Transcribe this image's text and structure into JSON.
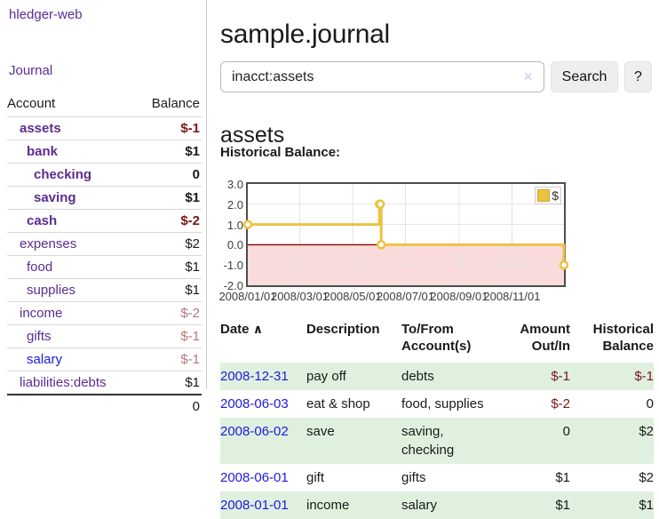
{
  "sidebar": {
    "app_title": "hledger-web",
    "journal_link": "Journal",
    "table": {
      "account_header": "Account",
      "balance_header": "Balance",
      "rows": [
        {
          "name": "assets",
          "balance": "$-1",
          "indent": 1,
          "bold": true,
          "amount_tone": "neg-strong",
          "link_tone": "purple"
        },
        {
          "name": "bank",
          "balance": "$1",
          "indent": 2,
          "bold": true,
          "amount_tone": "normal",
          "link_tone": "purple"
        },
        {
          "name": "checking",
          "balance": "0",
          "indent": 3,
          "bold": true,
          "amount_tone": "normal",
          "link_tone": "purple"
        },
        {
          "name": "saving",
          "balance": "$1",
          "indent": 3,
          "bold": true,
          "amount_tone": "normal",
          "link_tone": "purple"
        },
        {
          "name": "cash",
          "balance": "$-2",
          "indent": 2,
          "bold": true,
          "amount_tone": "neg-strong",
          "link_tone": "purple"
        },
        {
          "name": "expenses",
          "balance": "$2",
          "indent": 1,
          "bold": false,
          "amount_tone": "normal",
          "link_tone": "purple"
        },
        {
          "name": "food",
          "balance": "$1",
          "indent": 2,
          "bold": false,
          "amount_tone": "normal",
          "link_tone": "purple"
        },
        {
          "name": "supplies",
          "balance": "$1",
          "indent": 2,
          "bold": false,
          "amount_tone": "normal",
          "link_tone": "purple"
        },
        {
          "name": "income",
          "balance": "$-2",
          "indent": 1,
          "bold": false,
          "amount_tone": "neg-soft",
          "link_tone": "purple"
        },
        {
          "name": "gifts",
          "balance": "$-1",
          "indent": 2,
          "bold": false,
          "amount_tone": "neg-soft",
          "link_tone": "purple"
        },
        {
          "name": "salary",
          "balance": "$-1",
          "indent": 2,
          "bold": false,
          "amount_tone": "neg-soft",
          "link_tone": "blue"
        },
        {
          "name": "liabilities:debts",
          "balance": "$1",
          "indent": 1,
          "bold": false,
          "amount_tone": "normal",
          "link_tone": "purple"
        }
      ],
      "total": "0"
    }
  },
  "main": {
    "title": "sample.journal",
    "search": {
      "value": "inacct:assets",
      "clear_icon": "✕",
      "button_label": "Search",
      "help_label": "?"
    },
    "account_heading": "assets",
    "chart_heading": "Historical Balance:"
  },
  "chart_data": {
    "type": "line",
    "step": true,
    "title": "Historical Balance:",
    "series": [
      {
        "name": "$",
        "color": "#edc240",
        "points": [
          [
            "2008-01-01",
            1
          ],
          [
            "2008-06-01",
            2
          ],
          [
            "2008-06-02",
            2
          ],
          [
            "2008-06-03",
            0
          ],
          [
            "2008-12-31",
            -1
          ]
        ]
      }
    ],
    "ylim": [
      -2,
      3
    ],
    "yticks": [
      "3.0",
      "2.0",
      "1.0",
      "0.0",
      "-1.0",
      "-2.0"
    ],
    "xticks": [
      "2008/01/01",
      "2008/03/01",
      "2008/05/01",
      "2008/07/01",
      "2008/09/01",
      "2008/11/01"
    ],
    "xrange": [
      "2008-01-01",
      "2008-12-31"
    ],
    "grid": true,
    "legend": {
      "label": "$",
      "position": "top-right"
    },
    "negative_region": {
      "below": 0,
      "color": "#f9dbdb"
    },
    "zero_line_color": "#8b0000",
    "gridline_color": "#e3e3e3"
  },
  "transactions": {
    "sort_icon": "∧",
    "headers": [
      {
        "line1": "Date",
        "line2": ""
      },
      {
        "line1": "Description",
        "line2": ""
      },
      {
        "line1": "To/From",
        "line2": "Account(s)"
      },
      {
        "line1": "Amount",
        "line2": "Out/In"
      },
      {
        "line1": "Historical",
        "line2": "Balance"
      }
    ],
    "rows": [
      {
        "date": "2008-12-31",
        "description": "pay off",
        "accounts": "debts",
        "amount": "$-1",
        "amount_tone": "neg",
        "balance": "$-1",
        "balance_tone": "neg",
        "shaded": true
      },
      {
        "date": "2008-06-03",
        "description": "eat & shop",
        "accounts": "food, supplies",
        "amount": "$-2",
        "amount_tone": "neg",
        "balance": "0",
        "balance_tone": "normal",
        "shaded": false
      },
      {
        "date": "2008-06-02",
        "description": "save",
        "accounts": "saving, checking",
        "amount": "0",
        "amount_tone": "normal",
        "balance": "$2",
        "balance_tone": "normal",
        "shaded": true
      },
      {
        "date": "2008-06-01",
        "description": "gift",
        "accounts": "gifts",
        "amount": "$1",
        "amount_tone": "normal",
        "balance": "$2",
        "balance_tone": "normal",
        "shaded": false
      },
      {
        "date": "2008-01-01",
        "description": "income",
        "accounts": "salary",
        "amount": "$1",
        "amount_tone": "normal",
        "balance": "$1",
        "balance_tone": "normal",
        "shaded": true
      }
    ]
  },
  "colors": {
    "link_purple": "#5b2c91",
    "link_blue": "#1b1be0",
    "negative_strong": "#7d1616",
    "negative_soft": "#b97676",
    "row_shade_green": "#dff0df",
    "chart_line": "#edc240"
  }
}
